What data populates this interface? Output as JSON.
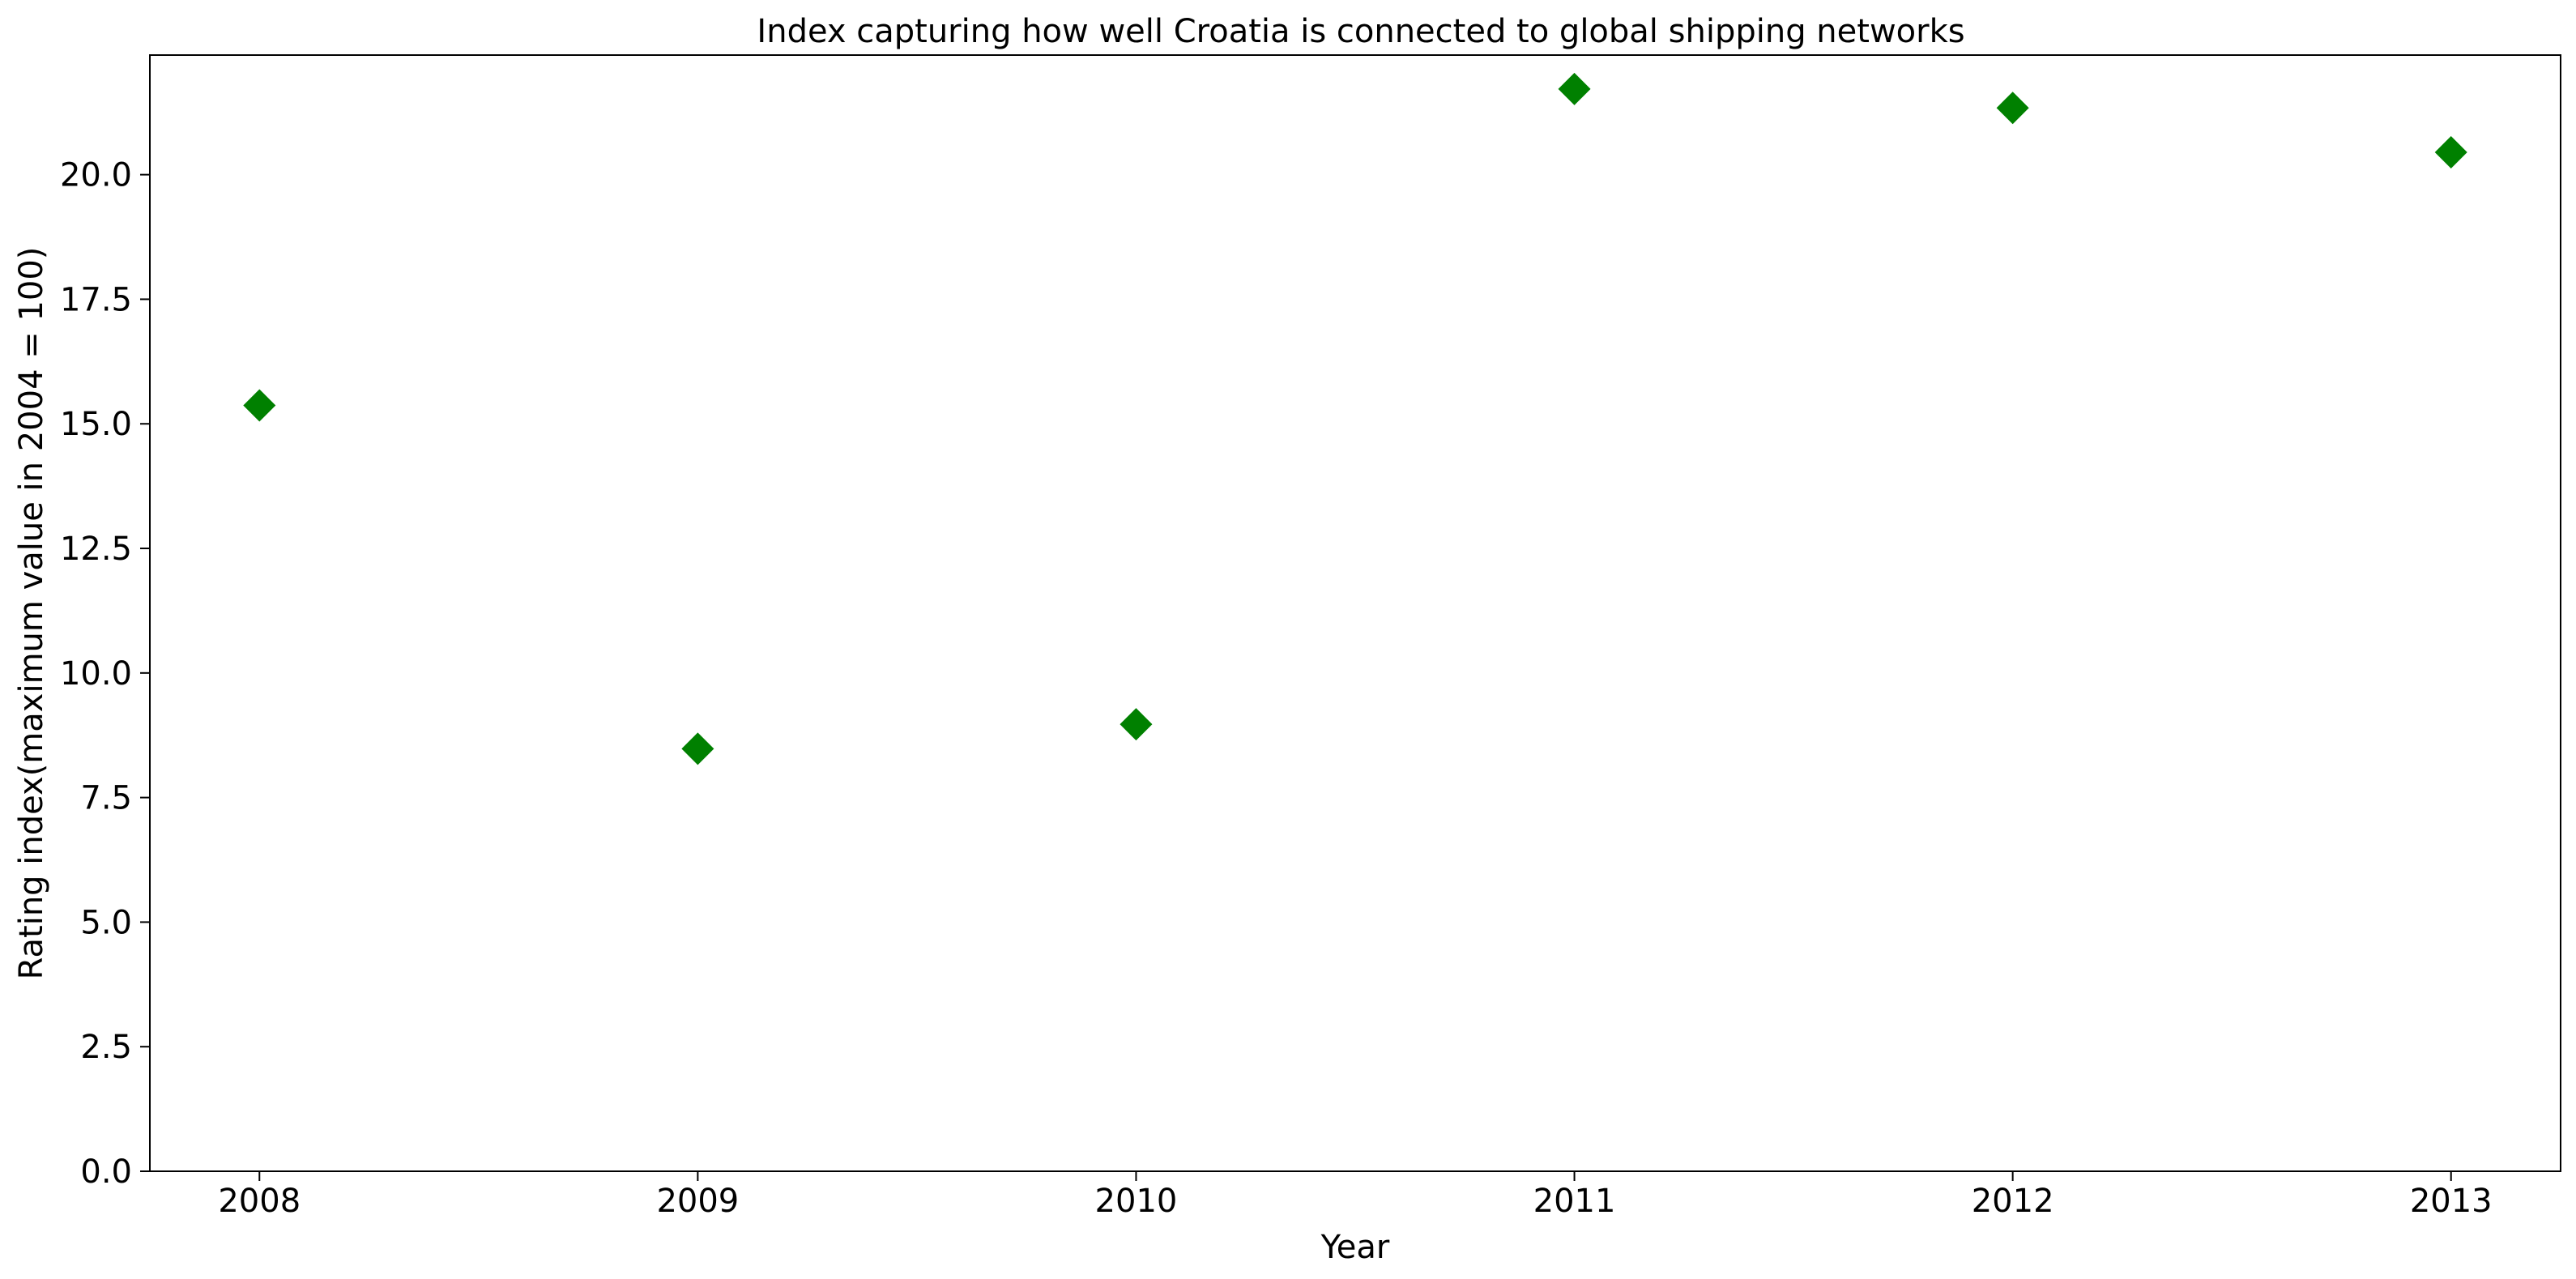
{
  "chart_data": {
    "type": "scatter",
    "title": "Index capturing how well Croatia is connected to global shipping networks",
    "xlabel": "Year",
    "ylabel": "Rating index(maximum value in 2004 = 100)",
    "x": [
      2008,
      2009,
      2010,
      2011,
      2012,
      2013
    ],
    "x_tick_labels": [
      "2008",
      "2009",
      "2010",
      "2011",
      "2012",
      "2013"
    ],
    "xlim": [
      2007.75,
      2013.25
    ],
    "y_ticks": [
      0.0,
      2.5,
      5.0,
      7.5,
      10.0,
      12.5,
      15.0,
      17.5,
      20.0
    ],
    "y_tick_labels": [
      "0.0",
      "2.5",
      "5.0",
      "7.5",
      "10.0",
      "12.5",
      "15.0",
      "17.5",
      "20.0"
    ],
    "ylim": [
      0,
      22.4
    ],
    "series": [
      {
        "name": "Croatia",
        "marker": "diamond",
        "color": "#008000",
        "values": [
          15.37,
          8.48,
          8.97,
          21.72,
          21.34,
          20.45
        ]
      }
    ],
    "grid": false,
    "legend": false
  }
}
